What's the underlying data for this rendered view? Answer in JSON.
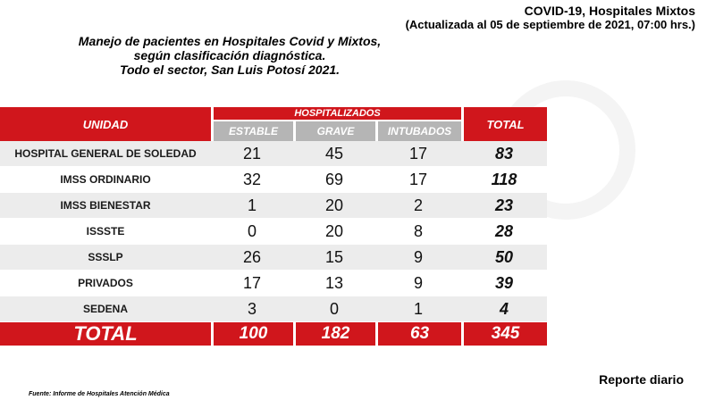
{
  "header": {
    "title": "COVID-19, Hospitales Mixtos",
    "subtitle": "(Actualizada al 05 de septiembre de 2021, 07:00 hrs.)"
  },
  "description": {
    "line1": "Manejo de pacientes en Hospitales Covid y Mixtos,",
    "line2": "según clasificación diagnóstica.",
    "line3": "Todo el sector, San Luis Potosí 2021."
  },
  "table": {
    "unit_header": "UNIDAD",
    "group_header": "HOSPITALIZADOS",
    "col_estable": "ESTABLE",
    "col_grave": "GRAVE",
    "col_intubados": "INTUBADOS",
    "total_header": "TOTAL",
    "rows": [
      {
        "unit": "HOSPITAL GENERAL DE SOLEDAD",
        "estable": "21",
        "grave": "45",
        "intubados": "17",
        "total": "83"
      },
      {
        "unit": "IMSS ORDINARIO",
        "estable": "32",
        "grave": "69",
        "intubados": "17",
        "total": "118"
      },
      {
        "unit": "IMSS BIENESTAR",
        "estable": "1",
        "grave": "20",
        "intubados": "2",
        "total": "23"
      },
      {
        "unit": "ISSSTE",
        "estable": "0",
        "grave": "20",
        "intubados": "8",
        "total": "28"
      },
      {
        "unit": "SSSLP",
        "estable": "26",
        "grave": "15",
        "intubados": "9",
        "total": "50"
      },
      {
        "unit": "PRIVADOS",
        "estable": "17",
        "grave": "13",
        "intubados": "9",
        "total": "39"
      },
      {
        "unit": "SEDENA",
        "estable": "3",
        "grave": "0",
        "intubados": "1",
        "total": "4"
      }
    ],
    "totals": {
      "label": "TOTAL",
      "estable": "100",
      "grave": "182",
      "intubados": "63",
      "total": "345"
    }
  },
  "footer": {
    "report_label": "Reporte diario",
    "source": "Fuente: Informe de Hospitales Atención Médica"
  },
  "colors": {
    "accent_red": "#d0161c",
    "subheader_grey": "#b5b5b5",
    "row_stripe": "#ececec"
  }
}
